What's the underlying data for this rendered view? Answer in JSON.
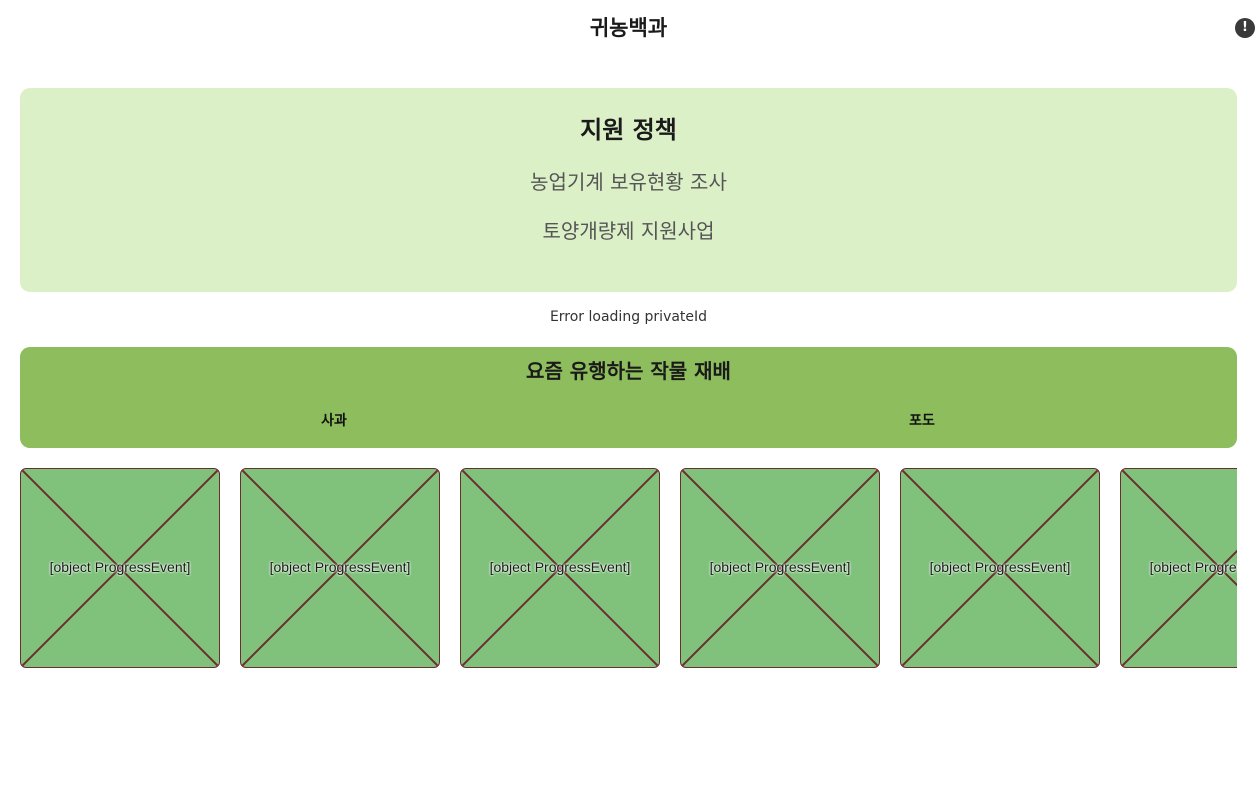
{
  "header": {
    "title": "귀농백과",
    "alert_icon": "exclamation-circle-icon",
    "alert_glyph": "!"
  },
  "policy": {
    "title": "지원 정책",
    "links": [
      "농업기계 보유현황 조사",
      "토양개량제 지원사업"
    ]
  },
  "status": {
    "error": "Error loading privateId"
  },
  "crops": {
    "title": "요즘 유행하는 작물 재배",
    "tabs": [
      "사과",
      "포도"
    ]
  },
  "gallery": {
    "items": [
      {
        "label": "[object ProgressEvent]"
      },
      {
        "label": "[object ProgressEvent]"
      },
      {
        "label": "[object ProgressEvent]"
      },
      {
        "label": "[object ProgressEvent]"
      },
      {
        "label": "[object ProgressEvent]"
      },
      {
        "label": "[object ProgressEvent]"
      }
    ]
  },
  "colors": {
    "policy_bg": "#dcf0c8",
    "crop_bg": "#8dbd5d",
    "tile_bg": "#80c27c",
    "tile_cross": "#6b2e2e"
  }
}
